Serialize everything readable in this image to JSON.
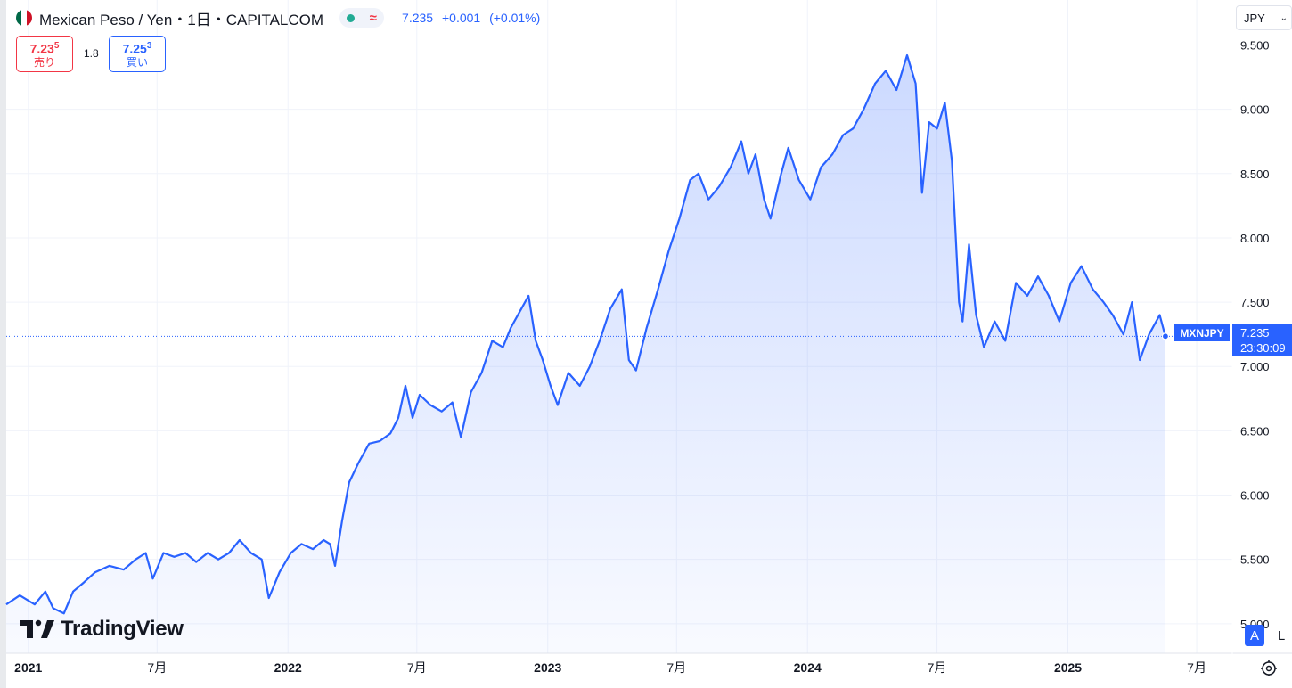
{
  "header": {
    "title": "Mexican Peso / Yen・1日・CAPITALCOM",
    "delayed_glyph": "≈",
    "last": "7.235",
    "change": "+0.001",
    "change_pct": "(+0.01%)"
  },
  "trade": {
    "sell_price_main": "7.23",
    "sell_price_sup": "5",
    "sell_label": "売り",
    "spread": "1.8",
    "buy_price_main": "7.25",
    "buy_price_sup": "3",
    "buy_label": "買い"
  },
  "currency": {
    "label": "JPY"
  },
  "price_tag": {
    "symbol": "MXNJPY",
    "price": "7.235",
    "countdown": "23:30:09"
  },
  "logo": {
    "text": "TradingView"
  },
  "scale_buttons": {
    "auto": "A",
    "log": "L"
  },
  "colors": {
    "line": "#2962ff",
    "sell": "#f23645",
    "buy": "#2962ff",
    "grid": "#f0f3fa"
  },
  "icons": {
    "settings": "settings-icon",
    "chevron": "chevron-down-icon"
  },
  "chart_data": {
    "type": "area",
    "title": "Mexican Peso / Yen",
    "xlabel": "",
    "ylabel": "",
    "ylim": [
      4.77,
      9.85
    ],
    "xlim": [
      "2020-12-01",
      "2025-08-20"
    ],
    "grid": true,
    "y_ticks": [
      "5.000",
      "5.500",
      "6.000",
      "6.500",
      "7.000",
      "7.500",
      "8.000",
      "8.500",
      "9.000",
      "9.500"
    ],
    "x_ticks": [
      {
        "date": "2021-01-01",
        "label": "2021",
        "bold": true
      },
      {
        "date": "2021-07-01",
        "label": "7月",
        "bold": false
      },
      {
        "date": "2022-01-01",
        "label": "2022",
        "bold": true
      },
      {
        "date": "2022-07-01",
        "label": "7月",
        "bold": false
      },
      {
        "date": "2023-01-01",
        "label": "2023",
        "bold": true
      },
      {
        "date": "2023-07-01",
        "label": "7月",
        "bold": false
      },
      {
        "date": "2024-01-01",
        "label": "2024",
        "bold": true
      },
      {
        "date": "2024-07-01",
        "label": "7月",
        "bold": false
      },
      {
        "date": "2025-01-01",
        "label": "2025",
        "bold": true
      },
      {
        "date": "2025-07-01",
        "label": "7月",
        "bold": false
      }
    ],
    "last_value": 7.235,
    "series": [
      {
        "points": [
          [
            "2020-12-01",
            5.15
          ],
          [
            "2020-12-20",
            5.22
          ],
          [
            "2021-01-10",
            5.15
          ],
          [
            "2021-01-25",
            5.25
          ],
          [
            "2021-02-05",
            5.12
          ],
          [
            "2021-02-20",
            5.08
          ],
          [
            "2021-03-05",
            5.25
          ],
          [
            "2021-03-20",
            5.32
          ],
          [
            "2021-04-05",
            5.4
          ],
          [
            "2021-04-25",
            5.45
          ],
          [
            "2021-05-15",
            5.42
          ],
          [
            "2021-06-01",
            5.5
          ],
          [
            "2021-06-15",
            5.55
          ],
          [
            "2021-06-25",
            5.35
          ],
          [
            "2021-07-10",
            5.55
          ],
          [
            "2021-07-25",
            5.52
          ],
          [
            "2021-08-10",
            5.55
          ],
          [
            "2021-08-25",
            5.48
          ],
          [
            "2021-09-10",
            5.55
          ],
          [
            "2021-09-25",
            5.5
          ],
          [
            "2021-10-10",
            5.55
          ],
          [
            "2021-10-25",
            5.65
          ],
          [
            "2021-11-10",
            5.55
          ],
          [
            "2021-11-25",
            5.5
          ],
          [
            "2021-12-05",
            5.2
          ],
          [
            "2021-12-20",
            5.4
          ],
          [
            "2022-01-05",
            5.55
          ],
          [
            "2022-01-20",
            5.62
          ],
          [
            "2022-02-05",
            5.58
          ],
          [
            "2022-02-20",
            5.65
          ],
          [
            "2022-03-01",
            5.62
          ],
          [
            "2022-03-08",
            5.45
          ],
          [
            "2022-03-18",
            5.8
          ],
          [
            "2022-03-28",
            6.1
          ],
          [
            "2022-04-10",
            6.25
          ],
          [
            "2022-04-25",
            6.4
          ],
          [
            "2022-05-10",
            6.42
          ],
          [
            "2022-05-25",
            6.48
          ],
          [
            "2022-06-05",
            6.6
          ],
          [
            "2022-06-15",
            6.85
          ],
          [
            "2022-06-25",
            6.6
          ],
          [
            "2022-07-05",
            6.78
          ],
          [
            "2022-07-20",
            6.7
          ],
          [
            "2022-08-05",
            6.65
          ],
          [
            "2022-08-20",
            6.72
          ],
          [
            "2022-09-01",
            6.45
          ],
          [
            "2022-09-15",
            6.8
          ],
          [
            "2022-09-30",
            6.95
          ],
          [
            "2022-10-15",
            7.2
          ],
          [
            "2022-10-30",
            7.15
          ],
          [
            "2022-11-10",
            7.3
          ],
          [
            "2022-11-25",
            7.45
          ],
          [
            "2022-12-05",
            7.55
          ],
          [
            "2022-12-15",
            7.2
          ],
          [
            "2022-12-25",
            7.05
          ],
          [
            "2023-01-05",
            6.85
          ],
          [
            "2023-01-15",
            6.7
          ],
          [
            "2023-01-30",
            6.95
          ],
          [
            "2023-02-15",
            6.85
          ],
          [
            "2023-03-01",
            7.0
          ],
          [
            "2023-03-15",
            7.2
          ],
          [
            "2023-03-30",
            7.45
          ],
          [
            "2023-04-15",
            7.6
          ],
          [
            "2023-04-25",
            7.05
          ],
          [
            "2023-05-05",
            6.97
          ],
          [
            "2023-05-20",
            7.3
          ],
          [
            "2023-06-05",
            7.6
          ],
          [
            "2023-06-20",
            7.9
          ],
          [
            "2023-07-05",
            8.15
          ],
          [
            "2023-07-20",
            8.45
          ],
          [
            "2023-08-01",
            8.5
          ],
          [
            "2023-08-15",
            8.3
          ],
          [
            "2023-08-30",
            8.4
          ],
          [
            "2023-09-15",
            8.55
          ],
          [
            "2023-09-30",
            8.75
          ],
          [
            "2023-10-10",
            8.5
          ],
          [
            "2023-10-20",
            8.65
          ],
          [
            "2023-11-01",
            8.3
          ],
          [
            "2023-11-10",
            8.15
          ],
          [
            "2023-11-25",
            8.5
          ],
          [
            "2023-12-05",
            8.7
          ],
          [
            "2023-12-20",
            8.45
          ],
          [
            "2024-01-05",
            8.3
          ],
          [
            "2024-01-20",
            8.55
          ],
          [
            "2024-02-05",
            8.65
          ],
          [
            "2024-02-20",
            8.8
          ],
          [
            "2024-03-05",
            8.85
          ],
          [
            "2024-03-20",
            9.0
          ],
          [
            "2024-04-05",
            9.2
          ],
          [
            "2024-04-20",
            9.3
          ],
          [
            "2024-05-05",
            9.15
          ],
          [
            "2024-05-20",
            9.42
          ],
          [
            "2024-06-01",
            9.2
          ],
          [
            "2024-06-10",
            8.35
          ],
          [
            "2024-06-20",
            8.9
          ],
          [
            "2024-07-01",
            8.85
          ],
          [
            "2024-07-12",
            9.05
          ],
          [
            "2024-07-22",
            8.6
          ],
          [
            "2024-08-01",
            7.5
          ],
          [
            "2024-08-06",
            7.35
          ],
          [
            "2024-08-15",
            7.95
          ],
          [
            "2024-08-25",
            7.4
          ],
          [
            "2024-09-05",
            7.15
          ],
          [
            "2024-09-20",
            7.35
          ],
          [
            "2024-10-05",
            7.2
          ],
          [
            "2024-10-20",
            7.65
          ],
          [
            "2024-11-05",
            7.55
          ],
          [
            "2024-11-20",
            7.7
          ],
          [
            "2024-12-05",
            7.55
          ],
          [
            "2024-12-20",
            7.35
          ],
          [
            "2025-01-05",
            7.65
          ],
          [
            "2025-01-20",
            7.78
          ],
          [
            "2025-02-05",
            7.6
          ],
          [
            "2025-02-20",
            7.5
          ],
          [
            "2025-03-05",
            7.4
          ],
          [
            "2025-03-20",
            7.25
          ],
          [
            "2025-04-01",
            7.5
          ],
          [
            "2025-04-12",
            7.05
          ],
          [
            "2025-04-25",
            7.25
          ],
          [
            "2025-05-10",
            7.4
          ],
          [
            "2025-05-18",
            7.235
          ]
        ]
      }
    ]
  }
}
